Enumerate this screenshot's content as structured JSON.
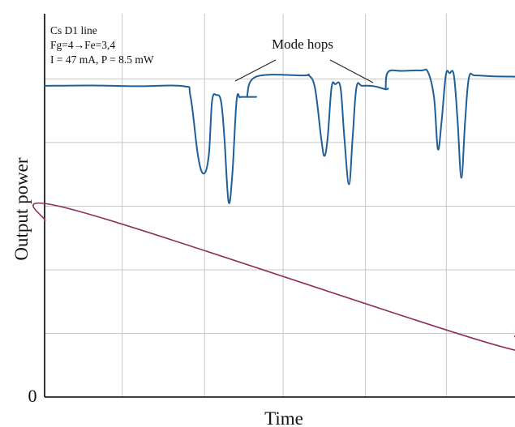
{
  "chart_data": {
    "type": "line",
    "xlabel": "Time",
    "ylabel": "Output power",
    "y_tick_labels": [
      "0"
    ],
    "grid": true,
    "info_box": [
      "Cs D1 line",
      "Fg=4→Fe=3,4",
      "I = 47 mA, P = 8.5 mW"
    ],
    "annotation": "Mode hops",
    "xlim": [
      0,
      100
    ],
    "ylim": [
      0,
      100
    ],
    "series": [
      {
        "color": "#1f5f99",
        "segments": [
          {
            "x": [
              0,
              10,
              20,
              29.5,
              31,
              32.6,
              33.8,
              34.9,
              35.6,
              36.5,
              37.5,
              38.2,
              39.1,
              39.9,
              40.8,
              41.5,
              42.2,
              43,
              45
            ],
            "y": [
              81.2,
              81.3,
              81.1,
              81.1,
              78.5,
              63,
              58.3,
              63,
              77.2,
              78.8,
              77.2,
              68,
              51,
              58,
              77.2,
              78.2,
              78.3,
              78.3,
              78.3
            ]
          },
          {
            "x": [
              43,
              45,
              55,
              56.2,
              57.5,
              58.8,
              59.5,
              60.2,
              61,
              61.8,
              62.9,
              63.7,
              64.7,
              65.5,
              66.3,
              67.5,
              70,
              72.5,
              73
            ],
            "y": [
              78.3,
              83.6,
              83.9,
              83.9,
              80.5,
              67.5,
              62.9,
              68,
              80.8,
              81.6,
              80.8,
              68,
              55.5,
              68,
              80.8,
              81.2,
              81.1,
              80.3,
              80.5
            ]
          },
          {
            "x": [
              72.5,
              73,
              76,
              80,
              81.5,
              82.8,
              83.6,
              84.4,
              85.3,
              86.1,
              87,
              87.8,
              88.6,
              89.4,
              90.2,
              91.5,
              95,
              100
            ],
            "y": [
              80.3,
              84.8,
              85.1,
              85.2,
              84.8,
              78,
              64.7,
              72,
              84,
              84.5,
              84,
              72,
              57.2,
              72,
              83.3,
              83.9,
              83.7,
              83.6
            ]
          }
        ]
      },
      {
        "color": "#8f2f5e",
        "segments": [
          {
            "x": [
              0,
              7.2,
              95.5,
              100
            ],
            "y": [
              45.9,
              48.5,
              13.7,
              15.9
            ]
          }
        ]
      }
    ]
  }
}
